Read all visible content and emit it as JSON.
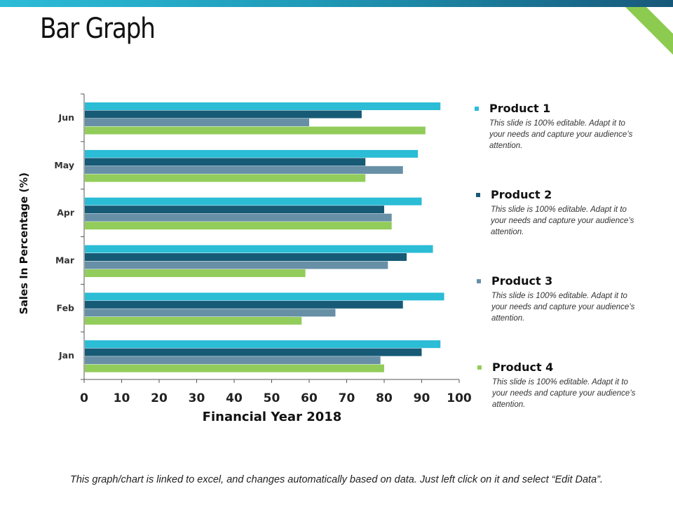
{
  "slide": {
    "title": "Bar Graph",
    "footer": "This graph/chart is linked to excel, and changes automatically based on data. Just left click on it and select “Edit Data”."
  },
  "colors": {
    "product1": "#2bbcd6",
    "product2": "#165a76",
    "product3": "#6790a6",
    "product4": "#92cc5a",
    "accent_band_start": "#2cbcd8",
    "accent_band_end": "#17587a",
    "corner_stripe": "#8ccb50"
  },
  "legend": [
    {
      "name": "Product 1",
      "description": "This slide is 100% editable. Adapt it to your needs and capture your audience’s attention."
    },
    {
      "name": "Product 2",
      "description": "This slide is 100% editable. Adapt it to your needs and capture your audience’s attention."
    },
    {
      "name": "Product 3",
      "description": "This slide is 100% editable. Adapt it to your needs and capture your audience’s attention."
    },
    {
      "name": "Product 4",
      "description": "This slide is 100% editable. Adapt it to your needs and capture your audience’s attention."
    }
  ],
  "chart_data": {
    "type": "bar",
    "orientation": "horizontal",
    "title": "",
    "xlabel": "Financial Year 2018",
    "ylabel": "Sales In Percentage (%)",
    "categories": [
      "Jan",
      "Feb",
      "Mar",
      "Apr",
      "May",
      "Jun"
    ],
    "xlim": [
      0,
      100
    ],
    "xticks": [
      0,
      10,
      20,
      30,
      40,
      50,
      60,
      70,
      80,
      90,
      100
    ],
    "grid": false,
    "legend_position": "right",
    "series": [
      {
        "name": "Product 1",
        "values": [
          95,
          96,
          93,
          90,
          89,
          95
        ]
      },
      {
        "name": "Product 2",
        "values": [
          90,
          85,
          86,
          80,
          75,
          74
        ]
      },
      {
        "name": "Product 3",
        "values": [
          79,
          67,
          81,
          82,
          85,
          60
        ]
      },
      {
        "name": "Product 4",
        "values": [
          80,
          58,
          59,
          82,
          75,
          91
        ]
      }
    ]
  }
}
